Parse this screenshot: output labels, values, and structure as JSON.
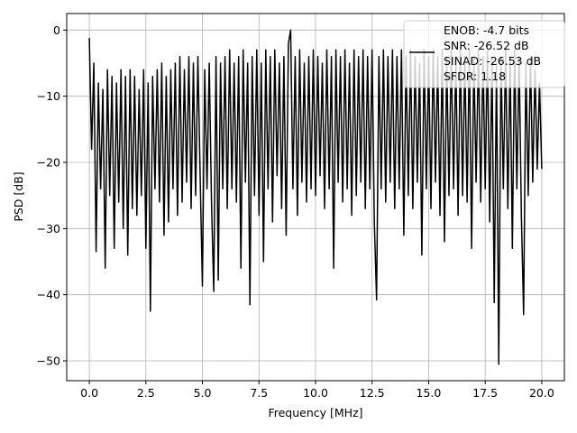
{
  "chart_data": {
    "type": "line",
    "title": "",
    "xlabel": "Frequency [MHz]",
    "ylabel": "PSD [dB]",
    "xlim": [
      -1,
      21
    ],
    "ylim": [
      -53,
      2.5
    ],
    "x_start": 0,
    "x_step": 0.1,
    "xticks": [
      0,
      2.5,
      5,
      7.5,
      10,
      12.5,
      15,
      17.5,
      20
    ],
    "xtick_labels": [
      "0.0",
      "2.5",
      "5.0",
      "7.5",
      "10.0",
      "12.5",
      "15.0",
      "17.5",
      "20.0"
    ],
    "yticks": [
      0,
      -10,
      -20,
      -30,
      -40,
      -50
    ],
    "ytick_labels": [
      "0",
      "−10",
      "−20",
      "−30",
      "−40",
      "−50"
    ],
    "grid": true,
    "legend_position": "top-right",
    "line_color": "#000000",
    "grid_color": "#b0b0b0",
    "series": [
      {
        "name": "PSD",
        "legend_lines": [
          "ENOB: -4.7 bits",
          "SNR: -26.52 dB",
          "SINAD: -26.53 dB",
          "SFDR: 1.18"
        ],
        "values": [
          -1.2,
          -18,
          -5,
          -33.5,
          -8,
          -24,
          -9,
          -36,
          -6,
          -25,
          -7,
          -33,
          -8,
          -26,
          -6,
          -30,
          -7,
          -34,
          -6,
          -27,
          -7,
          -28,
          -9,
          -25,
          -6,
          -33,
          -8,
          -42.5,
          -7,
          -24,
          -6,
          -26,
          -5,
          -31,
          -7,
          -29,
          -6,
          -24,
          -5,
          -28,
          -4,
          -26,
          -6,
          -23,
          -4,
          -27,
          -5,
          -25,
          -4,
          -22,
          -38.7,
          -6,
          -24,
          -5,
          -26,
          -39.5,
          -4,
          -37.8,
          -5,
          -24,
          -4,
          -27,
          -3,
          -24,
          -5,
          -26,
          -4,
          -36,
          -3,
          -23,
          -5,
          -41.5,
          -4,
          -25,
          -3,
          -28,
          -5,
          -35,
          -3,
          -24,
          -4,
          -29,
          -3,
          -22,
          -5,
          -27,
          -4,
          -31,
          -2,
          0,
          -24,
          -4,
          -28,
          -3,
          -23,
          -5,
          -26,
          -4,
          -24,
          -3,
          -25,
          -4,
          -22,
          -5,
          -27,
          -3,
          -24,
          -4,
          -36,
          -3,
          -23,
          -4,
          -26,
          -3,
          -24,
          -5,
          -28,
          -3,
          -25,
          -4,
          -23,
          -3,
          -27,
          -4,
          -24,
          -3,
          -29,
          -40.8,
          -4,
          -24,
          -3,
          -26,
          -4,
          -23,
          -3,
          -27,
          -4,
          -24,
          -3,
          -31,
          -4,
          -25,
          -3,
          -27,
          -4,
          -23,
          -5,
          -34,
          -3,
          -24,
          -4,
          -27,
          -3,
          -23,
          -4,
          -28,
          -3,
          -32,
          -4,
          -25,
          -3,
          -24,
          -4,
          -28,
          -3,
          -25,
          -4,
          -26,
          -3,
          -33,
          -4,
          -23,
          -3,
          -26,
          -4,
          -24,
          -3,
          -29,
          -4,
          -41.2,
          -5,
          -50.5,
          -4,
          -24,
          -3,
          -27,
          -4,
          -33,
          -3,
          -24,
          -4,
          -28,
          -43,
          -5,
          -25,
          -4,
          -23,
          -6,
          -21,
          -8,
          -21
        ]
      }
    ]
  }
}
